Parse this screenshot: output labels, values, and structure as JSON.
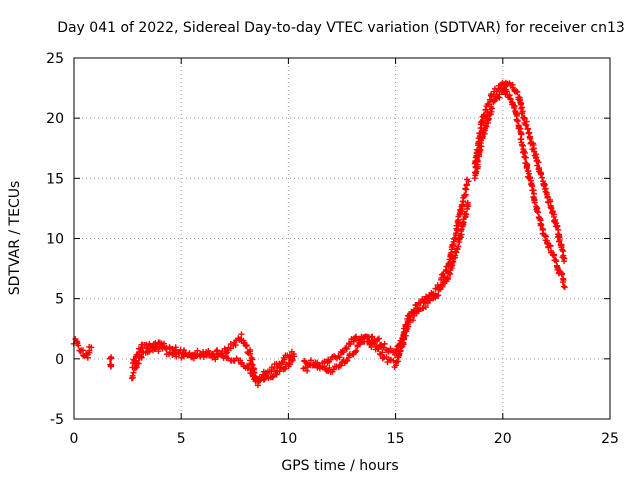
{
  "chart_data": {
    "type": "scatter",
    "title": "Day 041 of 2022, Sidereal Day-to-day VTEC variation (SDTVAR) for receiver cn13",
    "xlabel": "GPS time / hours",
    "ylabel": "SDTVAR / TECUs",
    "xlim": [
      0,
      25
    ],
    "ylim": [
      -5,
      25
    ],
    "xticks": [
      0,
      5,
      10,
      15,
      20,
      25
    ],
    "yticks": [
      -5,
      0,
      5,
      10,
      15,
      20,
      25
    ],
    "grid": true,
    "marker": "+",
    "series": [
      {
        "name": "SDTVAR cn13",
        "color": "#ff0000",
        "bands": [
          [
            [
              0.0,
              1.5
            ],
            [
              0.3,
              0.8
            ],
            [
              0.6,
              0.2
            ],
            [
              0.8,
              1.0
            ]
          ],
          [
            [
              1.7,
              0.2
            ],
            [
              1.7,
              -1.0
            ]
          ],
          [
            [
              2.7,
              -1.5
            ],
            [
              3.2,
              0.5
            ],
            [
              4.0,
              1.3
            ],
            [
              5.0,
              0.6
            ],
            [
              6.0,
              0.4
            ],
            [
              7.0,
              0.6
            ],
            [
              7.8,
              1.8
            ],
            [
              8.2,
              0.5
            ],
            [
              8.5,
              -2.0
            ],
            [
              9.2,
              -1.5
            ],
            [
              10.0,
              -0.5
            ],
            [
              10.3,
              0.3
            ]
          ],
          [
            [
              2.7,
              -0.5
            ],
            [
              3.2,
              1.2
            ],
            [
              4.0,
              0.8
            ],
            [
              5.0,
              0.3
            ],
            [
              6.0,
              0.2
            ],
            [
              7.0,
              0.2
            ],
            [
              7.8,
              -0.2
            ],
            [
              8.2,
              -1.0
            ],
            [
              8.5,
              -1.7
            ],
            [
              9.2,
              -0.9
            ],
            [
              10.0,
              0.2
            ],
            [
              10.3,
              0.5
            ]
          ],
          [
            [
              10.7,
              -0.8
            ],
            [
              11.5,
              -0.6
            ],
            [
              12.0,
              -1.0
            ],
            [
              12.5,
              -0.5
            ],
            [
              13.0,
              0.5
            ],
            [
              13.5,
              1.5
            ],
            [
              14.0,
              1.8
            ],
            [
              14.5,
              1.0
            ],
            [
              15.0,
              0.5
            ],
            [
              15.3,
              1.5
            ],
            [
              15.6,
              3.5
            ],
            [
              16.0,
              4.5
            ],
            [
              16.5,
              5.0
            ],
            [
              17.0,
              6.0
            ],
            [
              17.5,
              8.0
            ],
            [
              18.0,
              12.0
            ],
            [
              18.4,
              15.0
            ]
          ],
          [
            [
              10.7,
              -0.3
            ],
            [
              11.5,
              -0.4
            ],
            [
              12.0,
              0.0
            ],
            [
              12.5,
              0.5
            ],
            [
              13.0,
              1.5
            ],
            [
              13.5,
              2.0
            ],
            [
              14.0,
              1.0
            ],
            [
              14.5,
              0.0
            ],
            [
              15.0,
              -0.5
            ],
            [
              15.3,
              1.0
            ],
            [
              15.6,
              3.0
            ],
            [
              16.0,
              4.0
            ],
            [
              16.5,
              4.7
            ],
            [
              17.0,
              5.5
            ],
            [
              17.5,
              7.0
            ],
            [
              18.0,
              10.0
            ],
            [
              18.4,
              13.0
            ]
          ],
          [
            [
              18.7,
              15.0
            ],
            [
              19.0,
              18.0
            ],
            [
              19.5,
              21.0
            ],
            [
              20.0,
              22.5
            ],
            [
              20.2,
              23.0
            ],
            [
              20.5,
              22.5
            ],
            [
              20.8,
              21.5
            ],
            [
              21.0,
              20.0
            ],
            [
              21.5,
              17.0
            ],
            [
              22.0,
              14.0
            ],
            [
              22.5,
              11.0
            ],
            [
              22.9,
              8.0
            ]
          ],
          [
            [
              18.7,
              16.0
            ],
            [
              19.0,
              19.5
            ],
            [
              19.5,
              22.0
            ],
            [
              20.0,
              22.8
            ],
            [
              20.2,
              22.0
            ],
            [
              20.5,
              21.0
            ],
            [
              20.8,
              19.0
            ],
            [
              21.0,
              17.0
            ],
            [
              21.5,
              13.0
            ],
            [
              22.0,
              10.0
            ],
            [
              22.5,
              8.0
            ],
            [
              22.9,
              6.0
            ]
          ]
        ]
      }
    ]
  }
}
